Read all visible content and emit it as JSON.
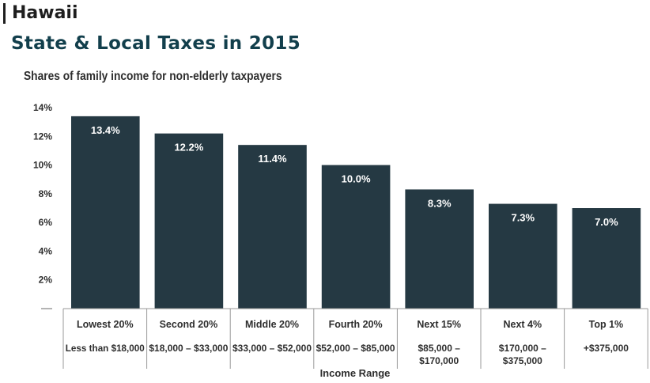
{
  "header": {
    "state": "Hawaii",
    "title": "State & Local Taxes in 2015"
  },
  "chart_data": {
    "type": "bar",
    "subtitle": "Shares of family income for non-elderly taxpayers",
    "categories": [
      "Lowest 20%",
      "Second 20%",
      "Middle 20%",
      "Fourth 20%",
      "Next 15%",
      "Next 4%",
      "Top 1%"
    ],
    "income_ranges": [
      [
        "Less than $18,000"
      ],
      [
        "$18,000 – $33,000"
      ],
      [
        "$33,000 – $52,000"
      ],
      [
        "$52,000 – $85,000"
      ],
      [
        "$85,000 –",
        "$170,000"
      ],
      [
        "$170,000 –",
        "$375,000"
      ],
      [
        "+$375,000"
      ]
    ],
    "values": [
      13.4,
      12.2,
      11.4,
      10.0,
      8.3,
      7.3,
      7.0
    ],
    "data_labels": [
      "13.4%",
      "12.2%",
      "11.4%",
      "10.0%",
      "8.3%",
      "7.3%",
      "7.0%"
    ],
    "xlabel": "Income Range",
    "ylabel": "",
    "ylim": [
      0,
      14
    ],
    "yticks": [
      0,
      2,
      4,
      6,
      8,
      10,
      12,
      14
    ],
    "ytick_labels": [
      "",
      "2%",
      "4%",
      "6%",
      "8%",
      "10%",
      "12%",
      "14%"
    ],
    "grid": false,
    "colors": {
      "bar": "#253943",
      "bar_label": "#ffffff",
      "axis": "#9a9a9a",
      "text": "#2e2e2e"
    }
  }
}
